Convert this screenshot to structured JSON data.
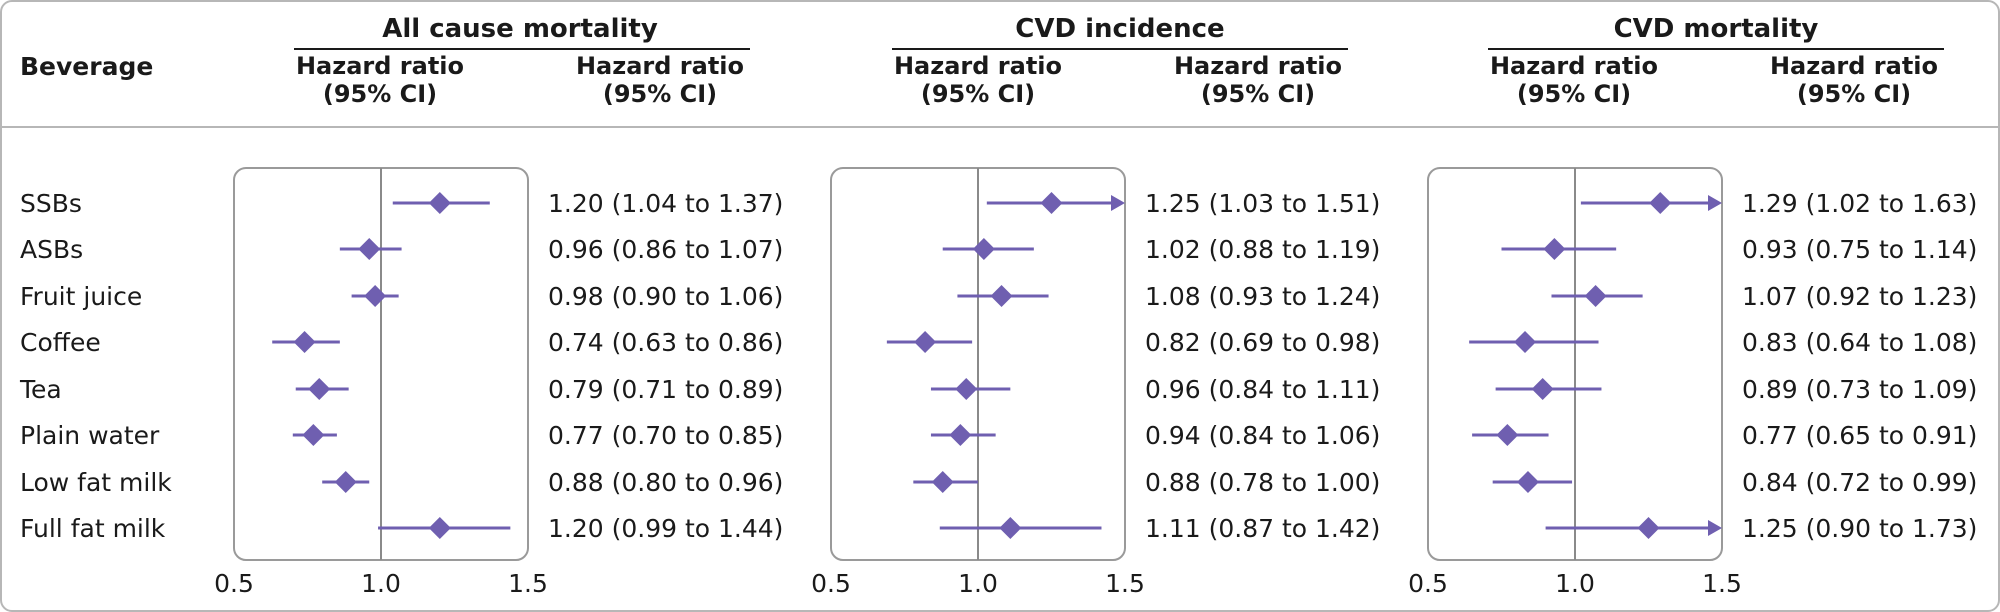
{
  "header": {
    "beverage_label": "Beverage",
    "panels": [
      {
        "title": "All cause mortality",
        "col1_line1": "Hazard ratio",
        "col1_line2": "(95% CI)",
        "col2_line1": "Hazard ratio",
        "col2_line2": "(95% CI)"
      },
      {
        "title": "CVD incidence",
        "col1_line1": "Hazard ratio",
        "col1_line2": "(95% CI)",
        "col2_line1": "Hazard ratio",
        "col2_line2": "(95% CI)"
      },
      {
        "title": "CVD mortality",
        "col1_line1": "Hazard ratio",
        "col1_line2": "(95% CI)",
        "col2_line1": "Hazard ratio",
        "col2_line2": "(95% CI)"
      }
    ]
  },
  "colors": {
    "marker": "#6f5fb0",
    "frame": "#9a9a9a",
    "refline": "#8a8a8a"
  },
  "chart_data": {
    "type": "forest",
    "categories": [
      "SSBs",
      "ASBs",
      "Fruit juice",
      "Coffee",
      "Tea",
      "Plain water",
      "Low fat milk",
      "Full fat milk"
    ],
    "xlim": [
      0.5,
      1.5
    ],
    "ticks": [
      0.5,
      1.0,
      1.5
    ],
    "tick_labels": [
      "0.5",
      "1.0",
      "1.5"
    ],
    "reference": 1.0,
    "series": [
      {
        "name": "All cause mortality",
        "hr": [
          1.2,
          0.96,
          0.98,
          0.74,
          0.79,
          0.77,
          0.88,
          1.2
        ],
        "lo": [
          1.04,
          0.86,
          0.9,
          0.63,
          0.71,
          0.7,
          0.8,
          0.99
        ],
        "hi": [
          1.37,
          1.07,
          1.06,
          0.86,
          0.89,
          0.85,
          0.96,
          1.44
        ],
        "labels": [
          "1.20 (1.04 to 1.37)",
          "0.96 (0.86 to 1.07)",
          "0.98 (0.90 to 1.06)",
          "0.74 (0.63 to 0.86)",
          "0.79 (0.71 to 0.89)",
          "0.77 (0.70 to 0.85)",
          "0.88 (0.80 to 0.96)",
          "1.20 (0.99 to 1.44)"
        ]
      },
      {
        "name": "CVD incidence",
        "hr": [
          1.25,
          1.02,
          1.08,
          0.82,
          0.96,
          0.94,
          0.88,
          1.11
        ],
        "lo": [
          1.03,
          0.88,
          0.93,
          0.69,
          0.84,
          0.84,
          0.78,
          0.87
        ],
        "hi": [
          1.51,
          1.19,
          1.24,
          0.98,
          1.11,
          1.06,
          1.0,
          1.42
        ],
        "labels": [
          "1.25 (1.03 to 1.51)",
          "1.02 (0.88 to 1.19)",
          "1.08 (0.93 to 1.24)",
          "0.82 (0.69 to 0.98)",
          "0.96 (0.84 to 1.11)",
          "0.94 (0.84 to 1.06)",
          "0.88 (0.78 to 1.00)",
          "1.11 (0.87 to 1.42)"
        ]
      },
      {
        "name": "CVD mortality",
        "hr": [
          1.29,
          0.93,
          1.07,
          0.83,
          0.89,
          0.77,
          0.84,
          1.25
        ],
        "lo": [
          1.02,
          0.75,
          0.92,
          0.64,
          0.73,
          0.65,
          0.72,
          0.9
        ],
        "hi": [
          1.63,
          1.14,
          1.23,
          1.08,
          1.09,
          0.91,
          0.99,
          1.73
        ],
        "labels": [
          "1.29 (1.02 to 1.63)",
          "0.93 (0.75 to 1.14)",
          "1.07 (0.92 to 1.23)",
          "0.83 (0.64 to 1.08)",
          "0.89 (0.73 to 1.09)",
          "0.77 (0.65 to 0.91)",
          "0.84 (0.72 to 0.99)",
          "1.25 (0.90 to 1.73)"
        ]
      }
    ]
  }
}
